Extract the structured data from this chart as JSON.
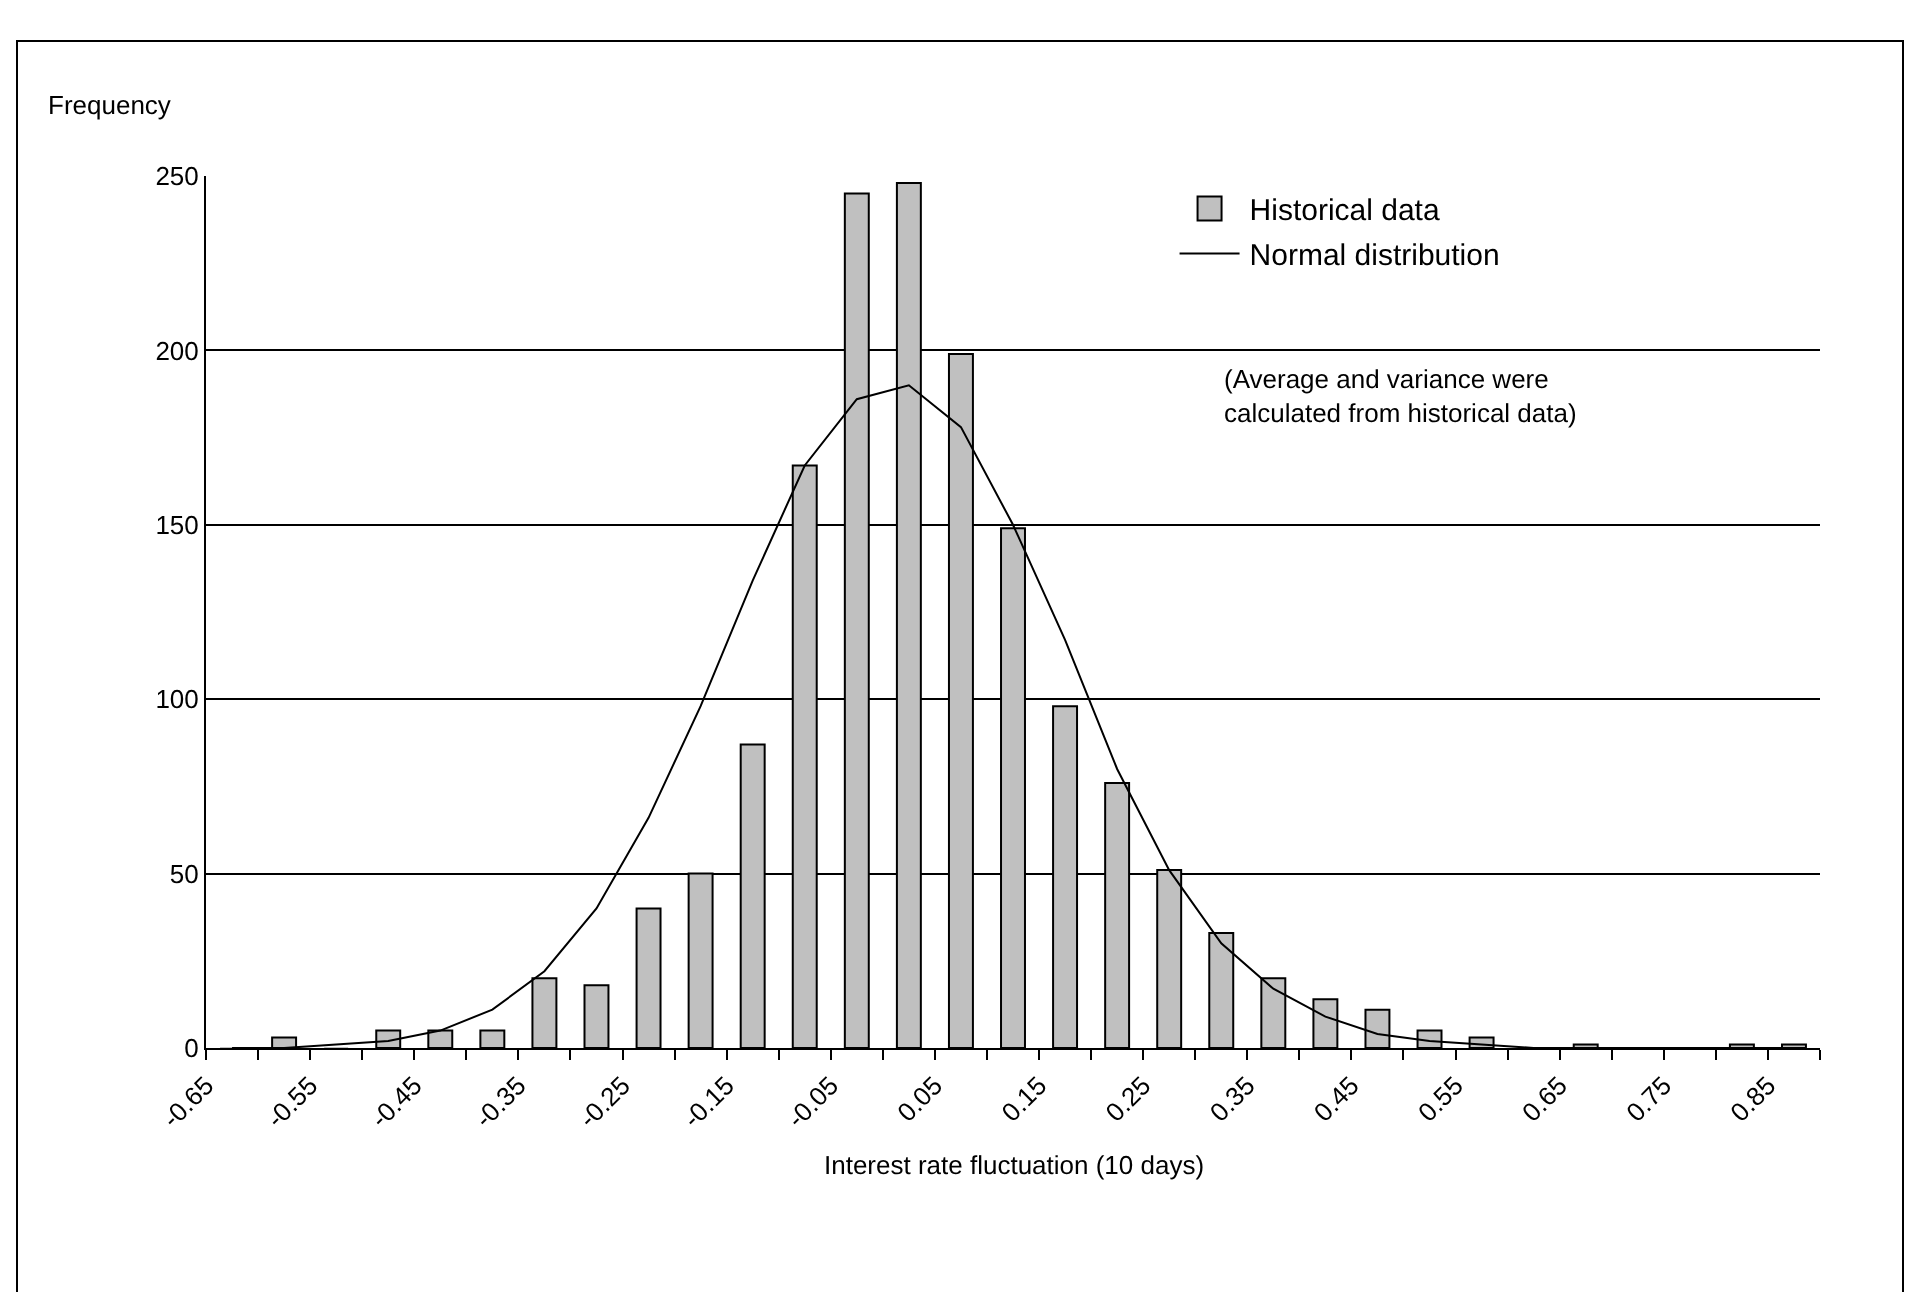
{
  "chart_data": {
    "type": "histogram",
    "xlabel": "Interest rate fluctuation (10 days)",
    "ylabel": "Frequency",
    "bins": [
      -0.65,
      -0.6,
      -0.55,
      -0.5,
      -0.45,
      -0.4,
      -0.35,
      -0.3,
      -0.25,
      -0.2,
      -0.15,
      -0.1,
      -0.05,
      0,
      0.05,
      0.1,
      0.15,
      0.2,
      0.25,
      0.3,
      0.35,
      0.4,
      0.45,
      0.5,
      0.55,
      0.6,
      0.65,
      0.7,
      0.75,
      0.8,
      0.85,
      0.9
    ],
    "series": [
      {
        "name": "Historical data",
        "color": "#c0c0c0",
        "values": [
          0,
          3,
          0,
          5,
          5,
          5,
          20,
          18,
          40,
          50,
          87,
          167,
          245,
          248,
          199,
          149,
          98,
          76,
          51,
          33,
          20,
          14,
          11,
          5,
          3,
          0,
          1,
          0,
          0,
          1,
          1
        ]
      },
      {
        "name": "Normal distribution",
        "type": "line",
        "color": "#000000",
        "x": [
          -0.625,
          -0.575,
          -0.525,
          -0.475,
          -0.425,
          -0.375,
          -0.325,
          -0.275,
          -0.225,
          -0.175,
          -0.125,
          -0.075,
          -0.025,
          0.025,
          0.075,
          0.125,
          0.175,
          0.225,
          0.275,
          0.325,
          0.375,
          0.425,
          0.475,
          0.525,
          0.575,
          0.625,
          0.675,
          0.725,
          0.775,
          0.825,
          0.875
        ],
        "values": [
          0,
          0,
          1,
          2,
          5,
          11,
          22,
          40,
          66,
          98,
          134,
          167,
          186,
          190,
          178,
          150,
          117,
          80,
          51,
          30,
          17,
          9,
          4,
          2,
          1,
          0,
          0,
          0,
          0,
          0,
          0
        ]
      }
    ],
    "xlim": [
      -0.65,
      0.9
    ],
    "xticks": [
      -0.65,
      -0.55,
      -0.45,
      -0.35,
      -0.25,
      -0.15,
      -0.05,
      0.05,
      0.15,
      0.25,
      0.35,
      0.45,
      0.55,
      0.65,
      0.75,
      0.85
    ],
    "ylim": [
      0,
      250
    ],
    "yticks": [
      0,
      50,
      100,
      150,
      200,
      250
    ],
    "grid": "y",
    "legend": "top right",
    "marker": "none",
    "annotations": [
      "(Average and variance were calculated from historical data)"
    ]
  }
}
